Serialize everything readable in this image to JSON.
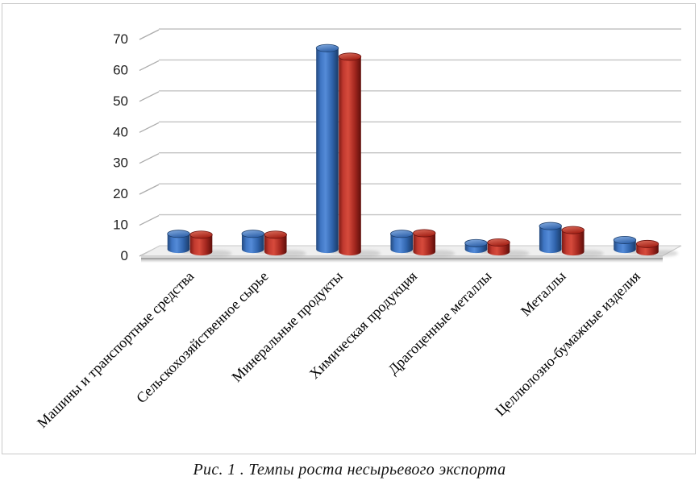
{
  "figure": {
    "caption": "Рис. 1 . Темпы роста несырьевого экспорта"
  },
  "chart_data": {
    "type": "bar",
    "style": "3d-cylinder-clustered",
    "title": "",
    "xlabel": "",
    "ylabel": "",
    "categories": [
      "Машины и транспортные средства",
      "Сельскохозяйственное сырье",
      "Минеральные продукты",
      "Химическая продукция",
      "Драгоценные металлы",
      "Металлы",
      "Целлюлозно-бумажные изделия"
    ],
    "series": [
      {
        "name": "blue",
        "color": "#3f76c4",
        "values": [
          5,
          5,
          65,
          5,
          2,
          7.5,
          3
        ]
      },
      {
        "name": "red",
        "color": "#c23a2f",
        "values": [
          5.5,
          5.5,
          63,
          6,
          3,
          7,
          2.5
        ]
      }
    ],
    "ylim": [
      0,
      70
    ],
    "ytick_step": 10,
    "yticks": [
      0,
      10,
      20,
      30,
      40,
      50,
      60,
      70
    ],
    "grid": true,
    "legend": "none",
    "category_label_rotation_deg": -45
  }
}
